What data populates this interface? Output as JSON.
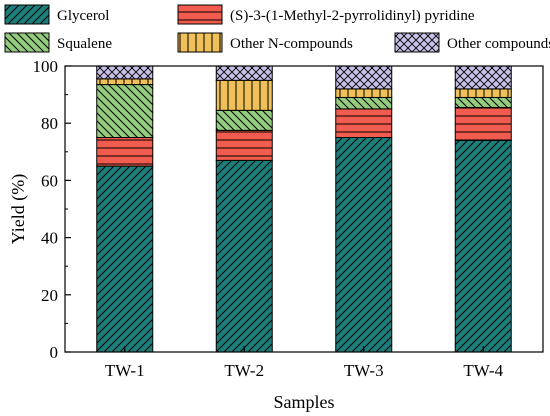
{
  "chart_data": {
    "type": "bar",
    "stacked": true,
    "categories": [
      "TW-1",
      "TW-2",
      "TW-3",
      "TW-4"
    ],
    "series": [
      {
        "name": "Glycerol",
        "values": [
          65,
          67,
          75,
          74
        ],
        "color": "#1a7f7a",
        "pattern": "diag-forward"
      },
      {
        "name": "(S)-3-(1-Methyl-2-pyrrolidinyl) pyridine",
        "values": [
          10,
          10.5,
          10,
          11.5
        ],
        "color": "#f25c4e",
        "pattern": "horizontal"
      },
      {
        "name": "Squalene",
        "values": [
          18.5,
          7,
          4,
          3.5
        ],
        "color": "#93cc7c",
        "pattern": "diag-back"
      },
      {
        "name": "Other N-compounds",
        "values": [
          2,
          10.5,
          3,
          3
        ],
        "color": "#f0c05a",
        "pattern": "vertical"
      },
      {
        "name": "Other compounds",
        "values": [
          4.5,
          5,
          8,
          8
        ],
        "color": "#c8c0e8",
        "pattern": "cross"
      }
    ],
    "xlabel": "Samples",
    "ylabel": "Yield (%)",
    "ylim": [
      0,
      100
    ],
    "yticks": [
      0,
      20,
      40,
      60,
      80,
      100
    ],
    "legend_position": "top"
  }
}
